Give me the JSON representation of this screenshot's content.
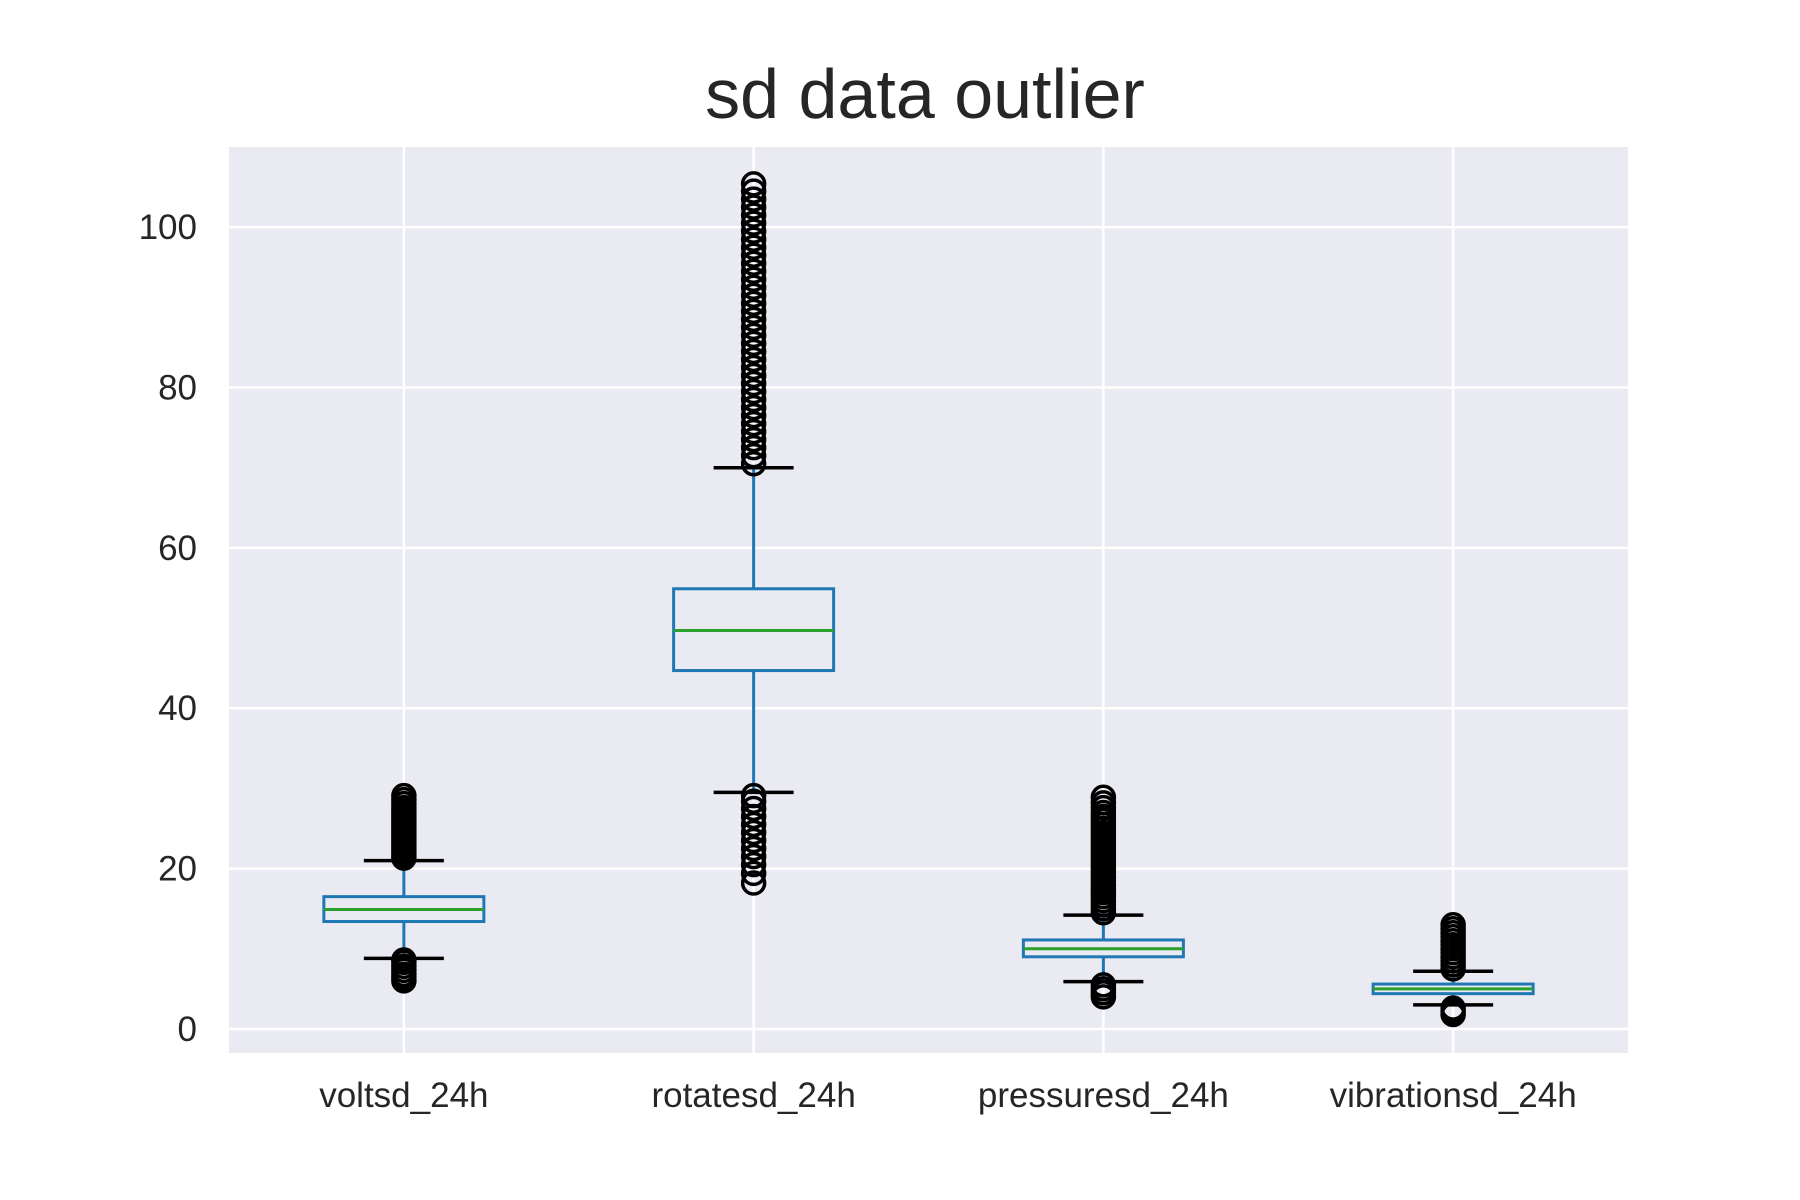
{
  "chart_data": {
    "type": "box",
    "title": "sd data outlier",
    "xlabel": "",
    "ylabel": "",
    "ylim": [
      -3,
      110
    ],
    "yticks": [
      0,
      20,
      40,
      60,
      80,
      100
    ],
    "grid": true,
    "background": "#eaeaf2",
    "colors": {
      "box": "#1f77b4",
      "median": "#2ca02c",
      "whisker": "#1f77b4",
      "cap": "#000000",
      "flier": "#000000"
    },
    "categories": [
      "voltsd_24h",
      "rotatesd_24h",
      "pressuresd_24h",
      "vibrationsd_24h"
    ],
    "boxes": [
      {
        "name": "voltsd_24h",
        "q1": 13.4,
        "median": 14.9,
        "q3": 16.5,
        "whisker_low": 8.8,
        "whisker_high": 21.0,
        "fliers_low": [
          6.0,
          6.4,
          6.8,
          7.3,
          7.8,
          8.3,
          8.6
        ],
        "fliers_high": [
          21.3,
          21.6,
          22.0,
          22.4,
          22.8,
          23.2,
          23.6,
          24.0,
          24.4,
          24.8,
          25.2,
          25.6,
          26.0,
          26.4,
          26.8,
          27.2,
          27.6,
          28.1,
          28.6,
          29.1
        ]
      },
      {
        "name": "rotatesd_24h",
        "q1": 44.7,
        "median": 49.7,
        "q3": 54.9,
        "whisker_low": 29.5,
        "whisker_high": 70.0,
        "fliers_low": [
          18.2,
          19.4,
          20.5,
          21.5,
          22.5,
          23.5,
          24.5,
          25.5,
          26.5,
          27.5,
          28.4,
          29.1
        ],
        "fliers_high": [
          70.5,
          71.5,
          72.5,
          73.5,
          74.5,
          75.5,
          76.5,
          77.5,
          78.5,
          79.5,
          80.5,
          81.5,
          82.5,
          83.5,
          84.5,
          85.5,
          86.5,
          87.5,
          88.5,
          89.5,
          90.5,
          91.5,
          92.5,
          93.5,
          94.5,
          95.5,
          96.5,
          97.5,
          98.5,
          99.5,
          100.5,
          101.5,
          102.5,
          103.5,
          104.5,
          105.4
        ]
      },
      {
        "name": "pressuresd_24h",
        "q1": 9.0,
        "median": 10.0,
        "q3": 11.1,
        "whisker_low": 5.9,
        "whisker_high": 14.2,
        "fliers_low": [
          4.0,
          4.5,
          5.0,
          5.5
        ],
        "fliers_high": [
          14.5,
          15.0,
          15.5,
          16.0,
          16.5,
          17.0,
          17.5,
          18.0,
          18.5,
          19.0,
          19.5,
          20.0,
          20.5,
          21.0,
          21.5,
          22.0,
          22.5,
          23.0,
          23.5,
          24.0,
          24.5,
          25.0,
          25.5,
          26.0,
          26.5,
          27.0,
          27.6,
          28.2,
          28.9
        ]
      },
      {
        "name": "vibrationsd_24h",
        "q1": 4.4,
        "median": 5.0,
        "q3": 5.6,
        "whisker_low": 3.0,
        "whisker_high": 7.2,
        "fliers_low": [
          1.8,
          2.2,
          2.6
        ],
        "fliers_high": [
          7.5,
          8.0,
          8.5,
          9.0,
          9.5,
          10.0,
          10.5,
          11.0,
          11.5,
          12.0,
          12.5,
          13.0
        ]
      }
    ]
  }
}
